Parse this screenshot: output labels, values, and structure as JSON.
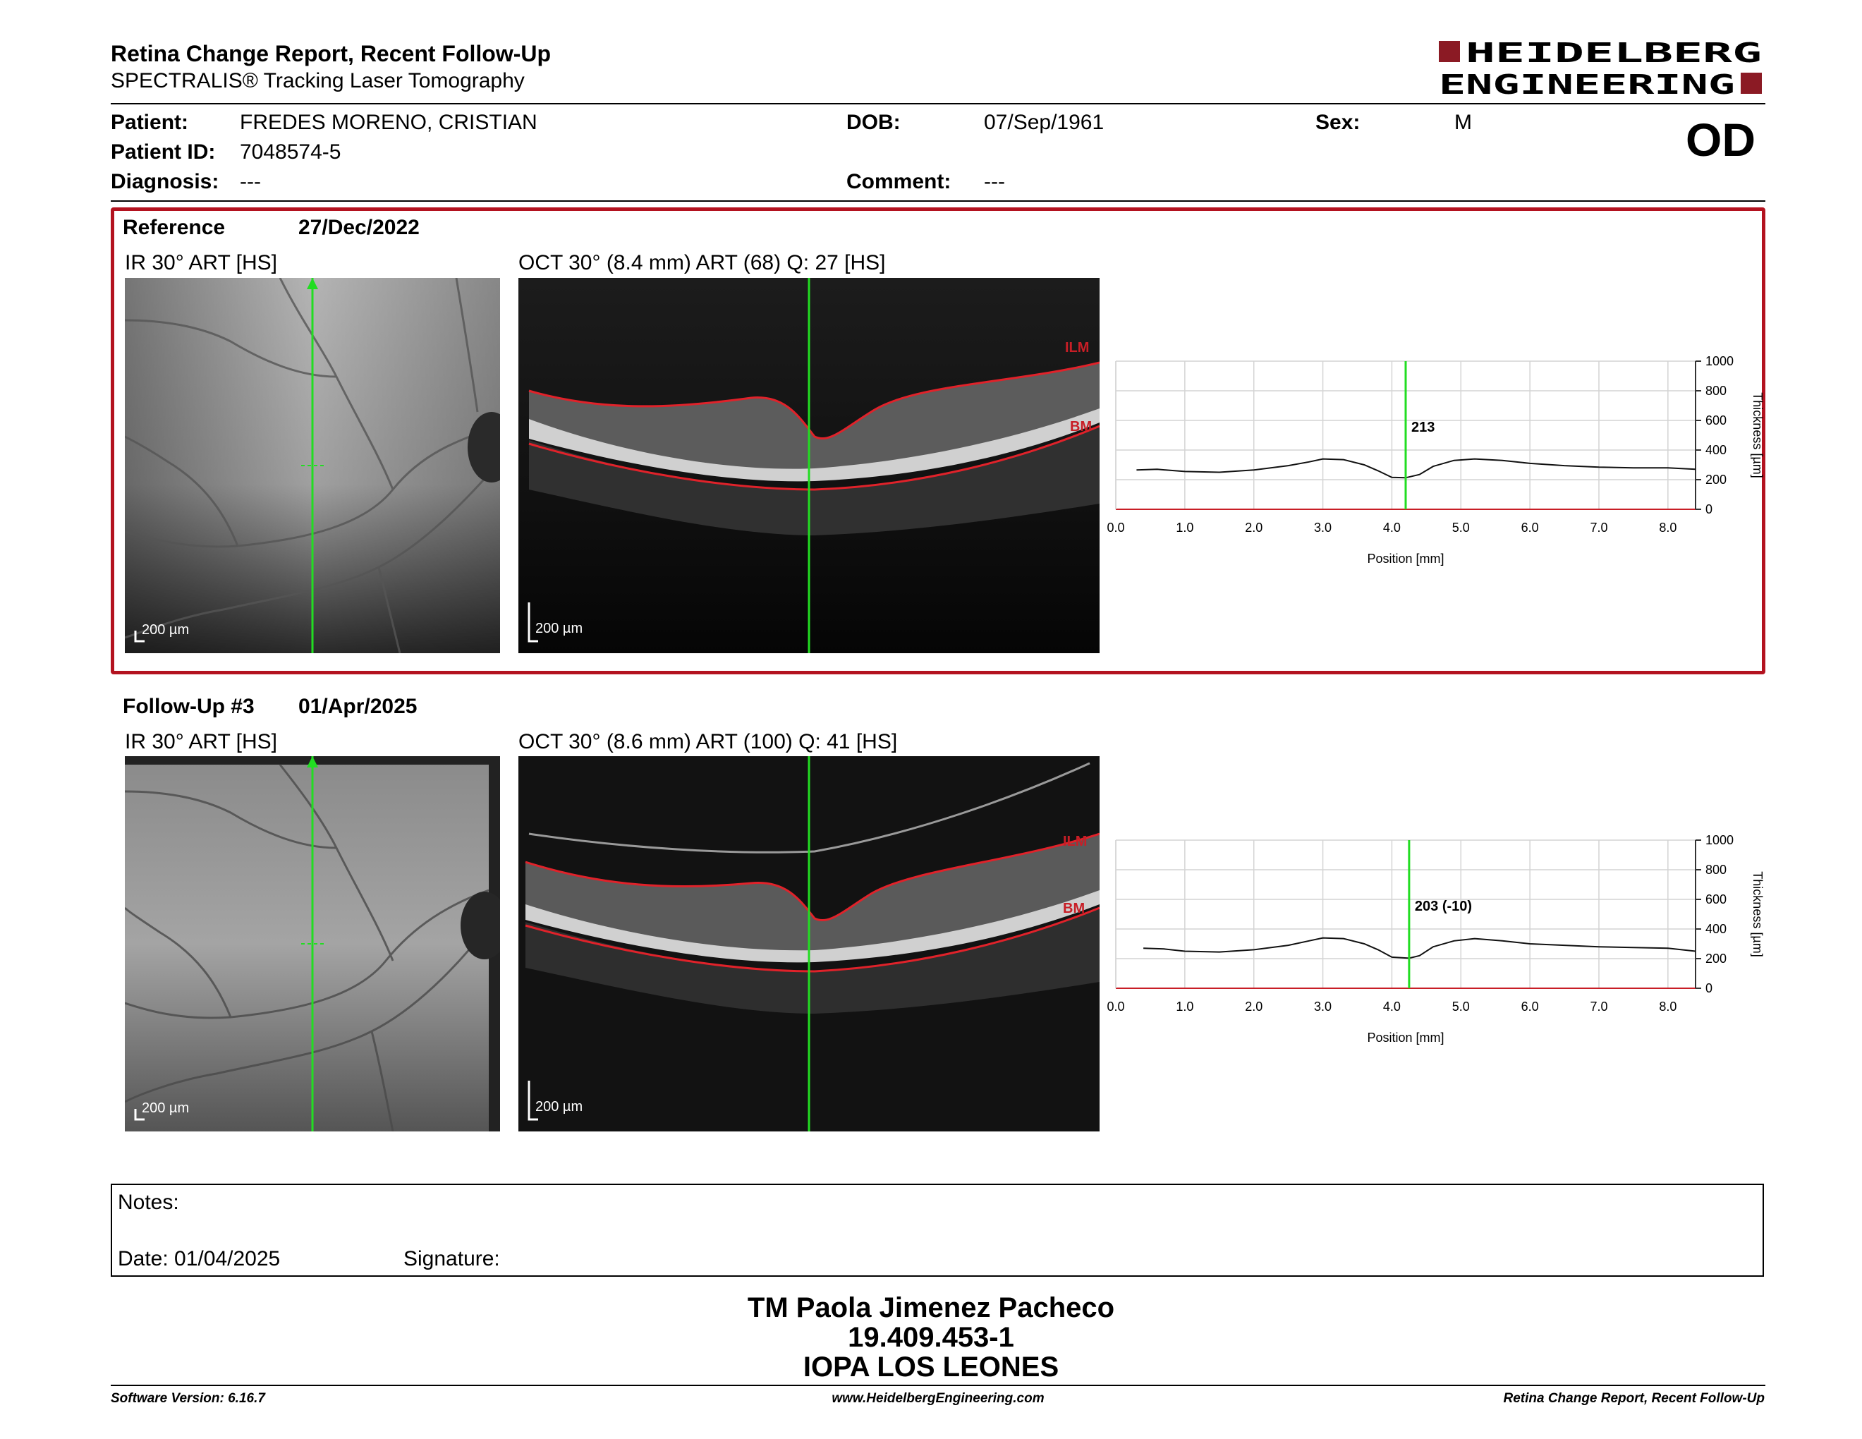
{
  "header": {
    "title": "Retina Change Report, Recent Follow-Up",
    "subtitle": "SPECTRALIS® Tracking Laser Tomography",
    "logo_line1": "HEIDELBERG",
    "logo_line2": "ENGINEERING",
    "eye": "OD"
  },
  "patient": {
    "patient_label": "Patient:",
    "patient_value": "FREDES MORENO, CRISTIAN",
    "id_label": "Patient ID:",
    "id_value": "7048574-5",
    "diagnosis_label": "Diagnosis:",
    "diagnosis_value": "---",
    "dob_label": "DOB:",
    "dob_value": "07/Sep/1961",
    "comment_label": "Comment:",
    "comment_value": "---",
    "sex_label": "Sex:",
    "sex_value": "M"
  },
  "reference": {
    "label": "Reference",
    "date": "27/Dec/2022",
    "ir_title": "IR 30° ART [HS]",
    "oct_title": "OCT 30° (8.4 mm) ART (68) Q: 27 [HS]",
    "scale": "200 µm",
    "ilm": "ILM",
    "bm": "BM",
    "marker_value": "213"
  },
  "followup": {
    "label": "Follow-Up #3",
    "date": "01/Apr/2025",
    "ir_title": "IR 30° ART [HS]",
    "oct_title": "OCT 30° (8.6 mm) ART (100) Q: 41 [HS]",
    "scale": "200 µm",
    "ilm": "ILM",
    "bm": "BM",
    "marker_value": "203 (-10)"
  },
  "chart_data": [
    {
      "type": "line",
      "xlabel": "Position [mm]",
      "ylabel": "Thickness [µm]",
      "xlim": [
        0,
        8.4
      ],
      "ylim": [
        0,
        1000
      ],
      "xticks": [
        "0.0",
        "1.0",
        "2.0",
        "3.0",
        "4.0",
        "5.0",
        "6.0",
        "7.0",
        "8.0"
      ],
      "yticks": [
        "0",
        "200",
        "400",
        "600",
        "800",
        "1000"
      ],
      "grid": true,
      "marker_x": 4.2,
      "series": [
        {
          "x": [
            0.3,
            0.6,
            1.0,
            1.5,
            2.0,
            2.5,
            2.8,
            3.0,
            3.3,
            3.6,
            3.8,
            4.0,
            4.2,
            4.4,
            4.6,
            4.9,
            5.2,
            5.6,
            6.0,
            6.5,
            7.0,
            7.5,
            8.0,
            8.4
          ],
          "values": [
            265,
            270,
            255,
            250,
            265,
            295,
            320,
            340,
            335,
            300,
            260,
            215,
            213,
            235,
            290,
            330,
            340,
            330,
            310,
            295,
            285,
            280,
            280,
            270
          ]
        }
      ]
    },
    {
      "type": "line",
      "xlabel": "Position [mm]",
      "ylabel": "Thickness [µm]",
      "xlim": [
        0,
        8.4
      ],
      "ylim": [
        0,
        1000
      ],
      "xticks": [
        "0.0",
        "1.0",
        "2.0",
        "3.0",
        "4.0",
        "5.0",
        "6.0",
        "7.0",
        "8.0"
      ],
      "yticks": [
        "0",
        "200",
        "400",
        "600",
        "800",
        "1000"
      ],
      "grid": true,
      "marker_x": 4.25,
      "series": [
        {
          "x": [
            0.4,
            0.7,
            1.0,
            1.5,
            2.0,
            2.5,
            2.8,
            3.0,
            3.3,
            3.6,
            3.8,
            4.0,
            4.25,
            4.4,
            4.6,
            4.9,
            5.2,
            5.6,
            6.0,
            6.5,
            7.0,
            7.5,
            8.0,
            8.4
          ],
          "values": [
            270,
            265,
            250,
            245,
            260,
            290,
            320,
            340,
            335,
            300,
            260,
            210,
            203,
            220,
            280,
            320,
            335,
            320,
            300,
            290,
            280,
            275,
            270,
            250
          ]
        }
      ]
    }
  ],
  "notes": {
    "label": "Notes:",
    "date_label": "Date: 01/04/2025",
    "signature_label": "Signature:"
  },
  "signer": {
    "name": "TM Paola Jimenez Pacheco",
    "id": "19.409.453-1",
    "place": "IOPA LOS LEONES"
  },
  "footer": {
    "software": "Software Version: 6.16.7",
    "website": "www.HeidelbergEngineering.com",
    "report": "Retina Change Report, Recent Follow-Up"
  }
}
